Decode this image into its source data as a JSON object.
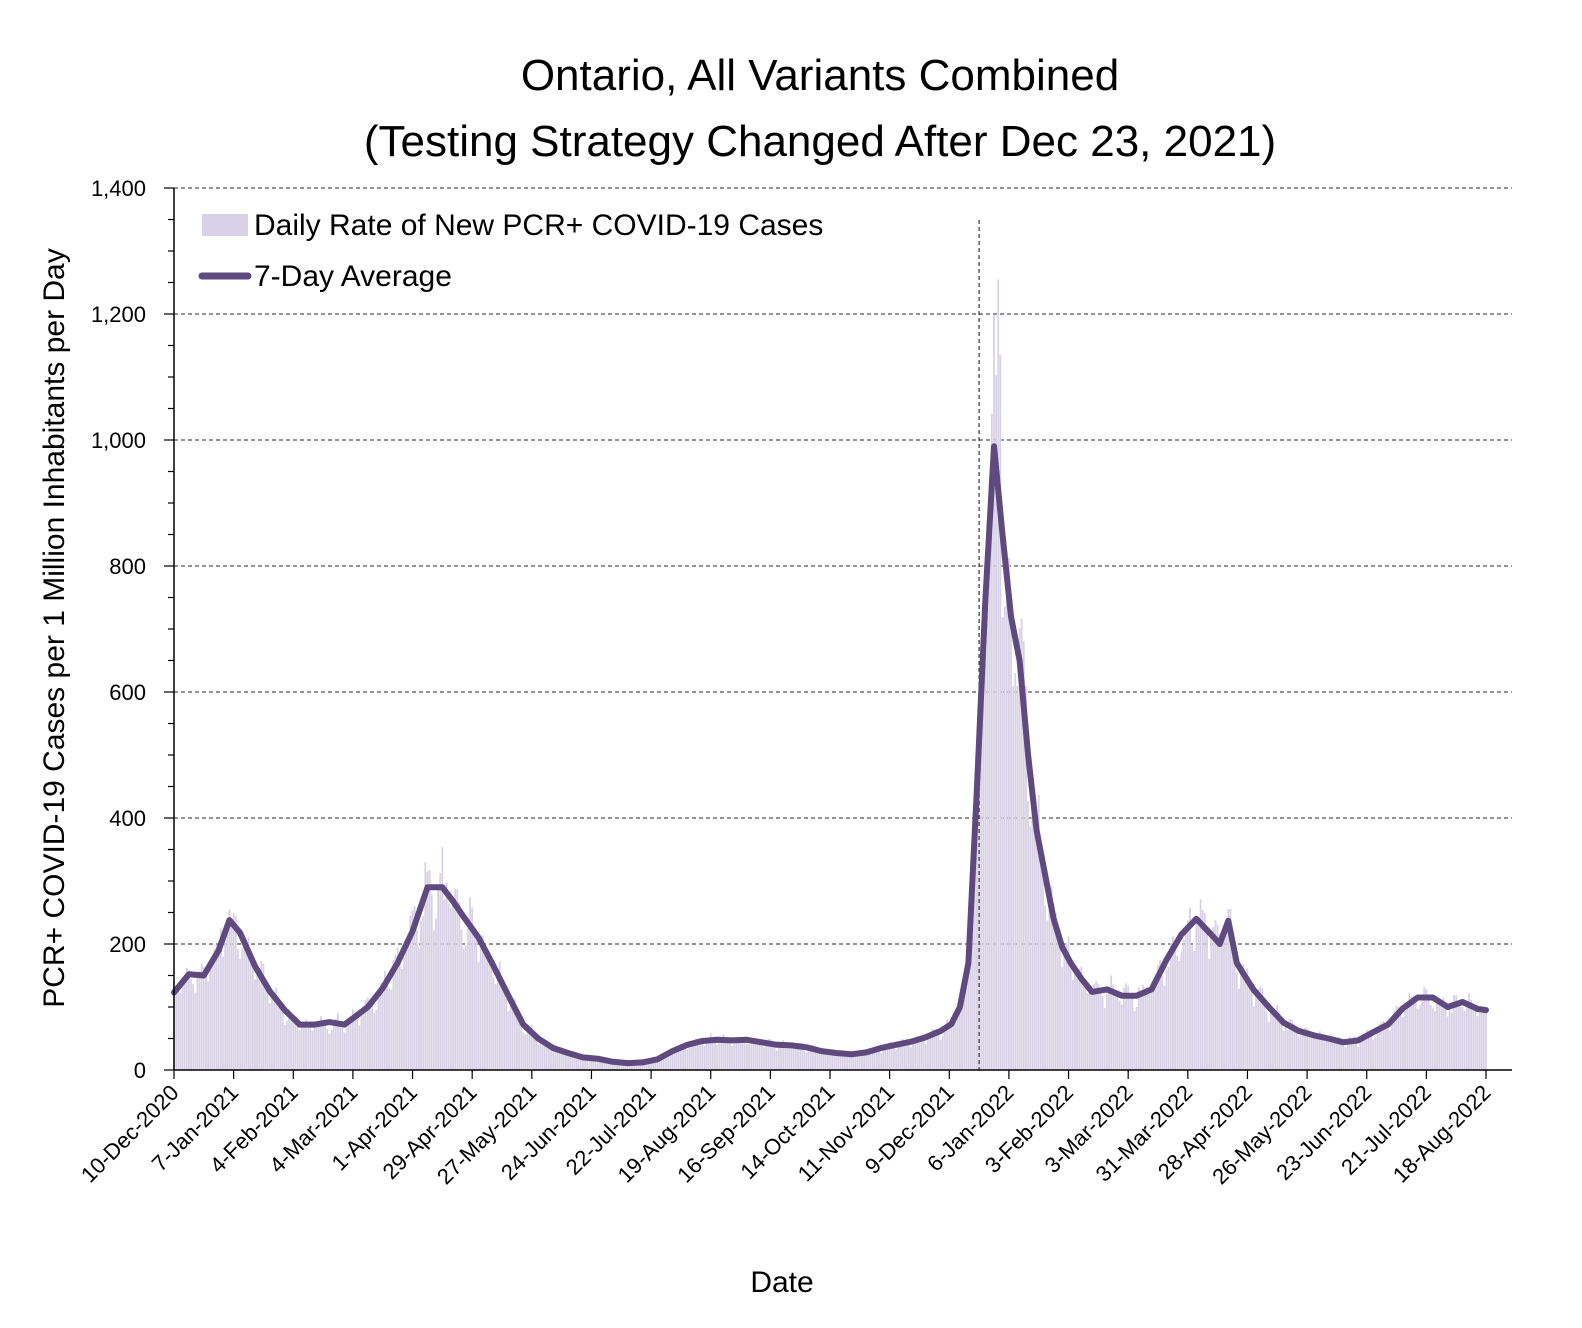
{
  "chart_data": {
    "type": "bar+line",
    "title_lines": [
      "Ontario, All Variants Combined",
      "(Testing Strategy Changed After Dec 23, 2021)"
    ],
    "xlabel": "Date",
    "ylabel": "PCR+ COVID-19 Cases per 1 Million Inhabitants per Day",
    "ylim": [
      0,
      1400
    ],
    "yticks": [
      0,
      200,
      400,
      600,
      800,
      1000,
      1200,
      1400
    ],
    "ytick_labels": [
      "0",
      "200",
      "400",
      "600",
      "800",
      "1,000",
      "1,200",
      "1,400"
    ],
    "xlim": [
      "2020-12-10",
      "2022-08-18"
    ],
    "xticks": [
      "2020-12-10",
      "2021-01-07",
      "2021-02-04",
      "2021-03-04",
      "2021-04-01",
      "2021-04-29",
      "2021-05-27",
      "2021-06-24",
      "2021-07-22",
      "2021-08-19",
      "2021-09-16",
      "2021-10-14",
      "2021-11-11",
      "2021-12-09",
      "2022-01-06",
      "2022-02-03",
      "2022-03-03",
      "2022-03-31",
      "2022-04-28",
      "2022-05-26",
      "2022-06-23",
      "2022-07-21",
      "2022-08-18"
    ],
    "xtick_labels": [
      "10-Dec-2020",
      "7-Jan-2021",
      "4-Feb-2021",
      "4-Mar-2021",
      "1-Apr-2021",
      "29-Apr-2021",
      "27-May-2021",
      "24-Jun-2021",
      "22-Jul-2021",
      "19-Aug-2021",
      "16-Sep-2021",
      "14-Oct-2021",
      "11-Nov-2021",
      "9-Dec-2021",
      "6-Jan-2022",
      "3-Feb-2022",
      "3-Mar-2022",
      "31-Mar-2022",
      "28-Apr-2022",
      "26-May-2022",
      "23-Jun-2022",
      "21-Jul-2022",
      "18-Aug-2022"
    ],
    "grid": "horizontal dashed",
    "legend_position": "top-left",
    "annotation": {
      "type": "vertical dashed line",
      "date": "2021-12-23",
      "text": "Testing Strategy Changed After Dec 23, 2021"
    },
    "series": [
      {
        "name": "Daily Rate of New PCR+ COVID-19 Cases",
        "type": "bar",
        "color": "#d9d1e6",
        "note": "daily values fluctuate around the 7-day average; peak daily value ≈ 1255 on 2022-01-01"
      },
      {
        "name": "7-Day Average",
        "type": "line",
        "color": "#5e4a7e",
        "x": [
          "2020-12-10",
          "2020-12-17",
          "2020-12-24",
          "2020-12-31",
          "2021-01-05",
          "2021-01-10",
          "2021-01-17",
          "2021-01-24",
          "2021-01-31",
          "2021-02-07",
          "2021-02-14",
          "2021-02-21",
          "2021-02-28",
          "2021-03-04",
          "2021-03-11",
          "2021-03-18",
          "2021-03-25",
          "2021-04-01",
          "2021-04-08",
          "2021-04-15",
          "2021-04-20",
          "2021-04-25",
          "2021-05-02",
          "2021-05-09",
          "2021-05-16",
          "2021-05-23",
          "2021-05-30",
          "2021-06-06",
          "2021-06-13",
          "2021-06-20",
          "2021-06-27",
          "2021-07-04",
          "2021-07-11",
          "2021-07-18",
          "2021-07-25",
          "2021-08-01",
          "2021-08-08",
          "2021-08-15",
          "2021-08-22",
          "2021-08-29",
          "2021-09-05",
          "2021-09-12",
          "2021-09-19",
          "2021-09-26",
          "2021-10-03",
          "2021-10-10",
          "2021-10-17",
          "2021-10-24",
          "2021-10-31",
          "2021-11-07",
          "2021-11-14",
          "2021-11-21",
          "2021-11-28",
          "2021-12-05",
          "2021-12-10",
          "2021-12-14",
          "2021-12-18",
          "2021-12-22",
          "2021-12-26",
          "2021-12-30",
          "2022-01-03",
          "2022-01-07",
          "2022-01-11",
          "2022-01-15",
          "2022-01-19",
          "2022-01-23",
          "2022-01-27",
          "2022-01-31",
          "2022-02-04",
          "2022-02-09",
          "2022-02-14",
          "2022-02-21",
          "2022-02-28",
          "2022-03-07",
          "2022-03-14",
          "2022-03-21",
          "2022-03-28",
          "2022-04-04",
          "2022-04-11",
          "2022-04-15",
          "2022-04-19",
          "2022-04-23",
          "2022-04-27",
          "2022-05-01",
          "2022-05-08",
          "2022-05-15",
          "2022-05-22",
          "2022-05-29",
          "2022-06-05",
          "2022-06-12",
          "2022-06-19",
          "2022-06-26",
          "2022-07-03",
          "2022-07-10",
          "2022-07-17",
          "2022-07-24",
          "2022-07-31",
          "2022-08-07",
          "2022-08-14",
          "2022-08-18"
        ],
        "values": [
          123,
          152,
          150,
          190,
          238,
          218,
          165,
          125,
          95,
          72,
          72,
          76,
          72,
          82,
          100,
          130,
          170,
          220,
          290,
          290,
          268,
          243,
          210,
          165,
          118,
          72,
          50,
          35,
          27,
          20,
          18,
          13,
          11,
          12,
          17,
          30,
          40,
          46,
          48,
          47,
          48,
          44,
          40,
          39,
          36,
          30,
          27,
          25,
          28,
          35,
          40,
          45,
          52,
          62,
          73,
          100,
          170,
          450,
          750,
          990,
          850,
          720,
          650,
          500,
          380,
          310,
          240,
          195,
          170,
          145,
          124,
          128,
          118,
          118,
          128,
          175,
          215,
          240,
          215,
          200,
          237,
          170,
          148,
          127,
          100,
          75,
          62,
          55,
          50,
          44,
          47,
          60,
          72,
          98,
          115,
          115,
          100,
          108,
          97,
          95
        ]
      }
    ]
  }
}
